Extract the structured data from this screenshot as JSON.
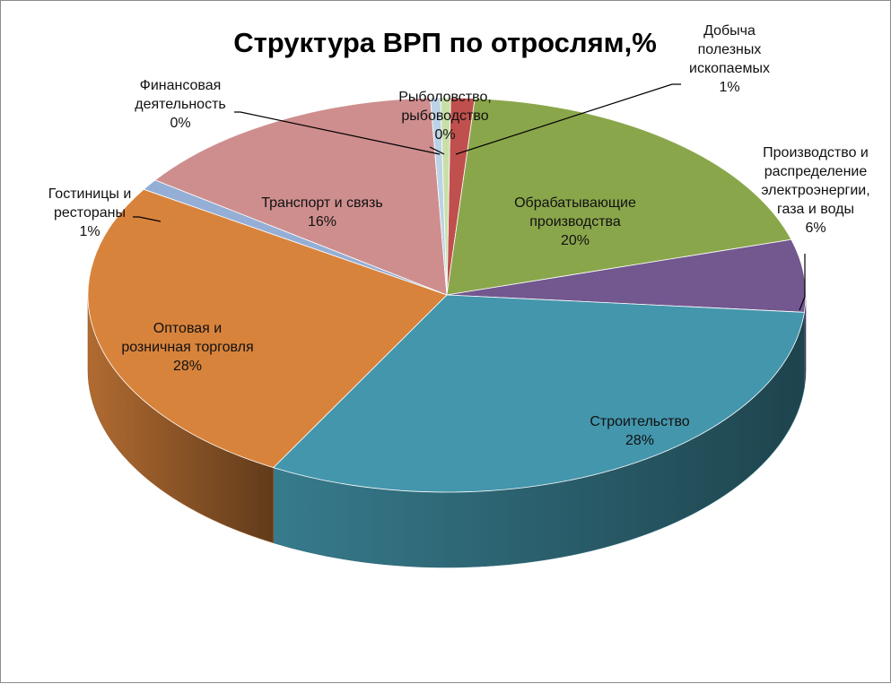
{
  "chart_data": {
    "type": "pie",
    "title": "Структура ВРП по отрослям,%",
    "slices": [
      {
        "label_lines": [
          "Добыча",
          "полезных",
          "ископаемых"
        ],
        "percent_label": "1%",
        "value": 1,
        "color": "#c0504d"
      },
      {
        "label_lines": [
          "Обрабатывающие",
          "производства"
        ],
        "percent_label": "20%",
        "value": 20,
        "color": "#8aa64b"
      },
      {
        "label_lines": [
          "Производство и",
          "распределение",
          "электроэнергии,",
          "газа и воды"
        ],
        "percent_label": "6%",
        "value": 6,
        "color": "#73578f"
      },
      {
        "label_lines": [
          "Строительство"
        ],
        "percent_label": "28%",
        "value": 28,
        "color": "#4396ac"
      },
      {
        "label_lines": [
          "Оптовая и",
          "розничная торговля"
        ],
        "percent_label": "28%",
        "value": 28,
        "color": "#d8833c"
      },
      {
        "label_lines": [
          "Гостиницы и",
          "рестораны"
        ],
        "percent_label": "1%",
        "value": 1,
        "color": "#94aed5"
      },
      {
        "label_lines": [
          "Транспорт и связь"
        ],
        "percent_label": "16%",
        "value": 16,
        "color": "#cf8e8e"
      },
      {
        "label_lines": [
          "Финансовая",
          "деятельность"
        ],
        "percent_label": "0%",
        "value": 0,
        "color": "#bcd2e6"
      },
      {
        "label_lines": [
          "Рыболовство,",
          "рыбоводство"
        ],
        "percent_label": "0%",
        "value": 0,
        "color": "#c9dfa8"
      }
    ]
  }
}
